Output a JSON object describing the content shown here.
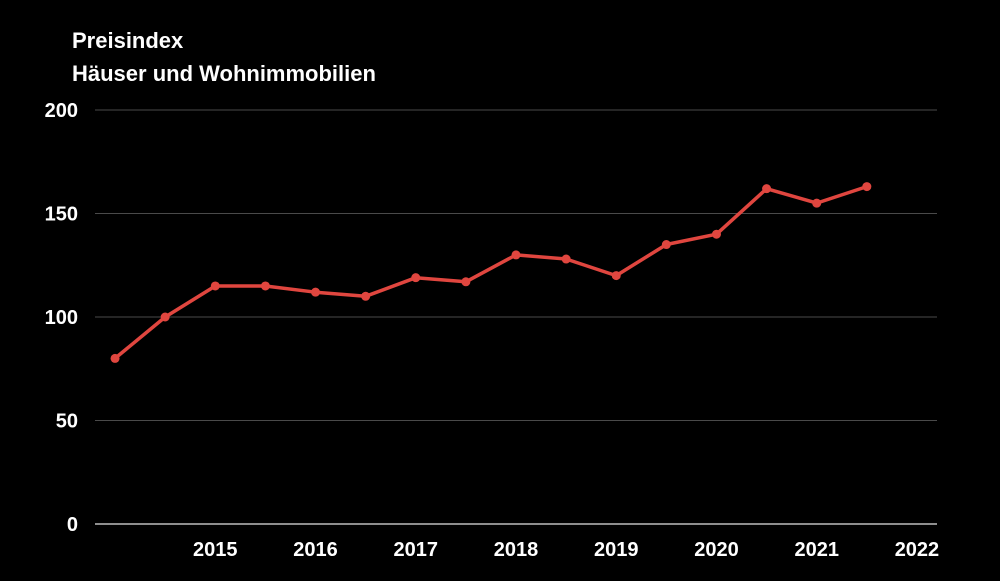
{
  "chart_data": {
    "type": "line",
    "title": "Preisindex",
    "subtitle": "Häuser und Wohnimmobilien",
    "xlabel": "",
    "ylabel": "",
    "ylim": [
      0,
      200
    ],
    "yticks": [
      "0",
      "50",
      "100",
      "150",
      "200"
    ],
    "xlim": [
      2013.8,
      2022.2
    ],
    "xticks": [
      "2015",
      "2016",
      "2017",
      "2018",
      "2019",
      "2020",
      "2021",
      "2022"
    ],
    "grid": true,
    "legend": "none",
    "line_color": "#e0463f",
    "series": [
      {
        "x": [
          2014.0,
          2014.5,
          2015.0,
          2015.5,
          2016.0,
          2016.5,
          2017.0,
          2017.5,
          2018.0,
          2018.5,
          2019.0,
          2019.5,
          2020.0,
          2020.5,
          2021.0,
          2021.5
        ],
        "values": [
          80,
          100,
          115,
          115,
          112,
          110,
          119,
          117,
          130,
          128,
          120,
          135,
          140,
          162,
          155,
          163
        ]
      }
    ]
  }
}
